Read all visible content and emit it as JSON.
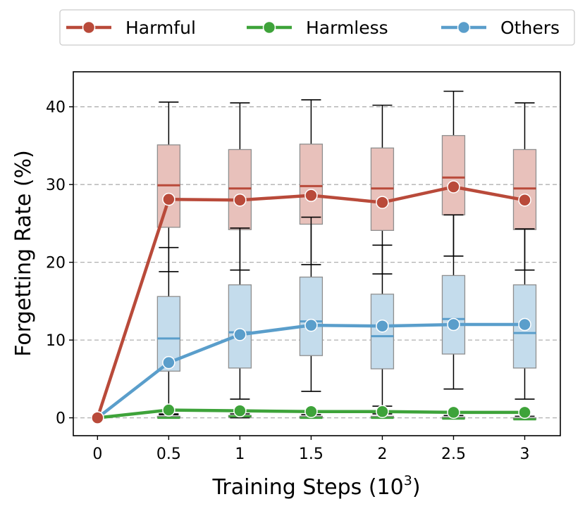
{
  "chart_data": {
    "type": "line",
    "xlabel_main": "Training Steps (10",
    "xlabel_sup": "3",
    "xlabel_close": ")",
    "ylabel": "Forgetting Rate (%)",
    "x": [
      0,
      0.5,
      1,
      1.5,
      2,
      2.5,
      3
    ],
    "xtick_labels": [
      "0",
      "0.5",
      "1",
      "1.5",
      "2",
      "2.5",
      "3"
    ],
    "yticks": [
      0,
      10,
      20,
      30,
      40
    ],
    "ytick_labels": [
      "0",
      "10",
      "20",
      "30",
      "40"
    ],
    "xlim": [
      -0.17,
      3.25
    ],
    "ylim": [
      -2.3,
      44.5
    ],
    "grid": "horizontal dashed",
    "legend_position": "top, above plot",
    "series": [
      {
        "name": "Harmful",
        "color": "#b94a3a",
        "box_fill": "#e8c1bb",
        "values": [
          0,
          28.1,
          28.0,
          28.6,
          27.7,
          29.7,
          28.0
        ],
        "boxes": [
          null,
          {
            "q1": 24.5,
            "median": 29.9,
            "q3": 35.1,
            "whislo": 18.8,
            "whishi": 40.6
          },
          {
            "q1": 24.2,
            "median": 29.5,
            "q3": 34.5,
            "whislo": 19.0,
            "whishi": 40.5
          },
          {
            "q1": 24.9,
            "median": 29.8,
            "q3": 35.2,
            "whislo": 19.7,
            "whishi": 40.9
          },
          {
            "q1": 24.1,
            "median": 29.5,
            "q3": 34.7,
            "whislo": 18.5,
            "whishi": 40.2
          },
          {
            "q1": 26.1,
            "median": 30.9,
            "q3": 36.3,
            "whislo": 20.8,
            "whishi": 42.0
          },
          {
            "q1": 24.2,
            "median": 29.5,
            "q3": 34.5,
            "whislo": 19.0,
            "whishi": 40.5
          }
        ]
      },
      {
        "name": "Harmless",
        "color": "#3ea33a",
        "box_fill": "#c2e3bf",
        "values": [
          0,
          1.0,
          0.9,
          0.8,
          0.8,
          0.7,
          0.7
        ],
        "boxes": [
          null,
          {
            "q1": 0.0,
            "median": 0.0,
            "q3": 0.2,
            "whislo": 0.0,
            "whishi": 0.4
          },
          {
            "q1": 0.1,
            "median": 0.2,
            "q3": 0.3,
            "whislo": 0.0,
            "whishi": 0.5
          },
          {
            "q1": 0.0,
            "median": 0.0,
            "q3": 0.2,
            "whislo": 0.0,
            "whishi": 0.4
          },
          {
            "q1": 0.0,
            "median": 0.0,
            "q3": 0.2,
            "whislo": 0.0,
            "whishi": 1.5
          },
          {
            "q1": -0.1,
            "median": -0.1,
            "q3": 0.1,
            "whislo": -0.1,
            "whishi": 0.3
          },
          {
            "q1": -0.2,
            "median": -0.2,
            "q3": 0.0,
            "whislo": -0.2,
            "whishi": 0.2
          }
        ]
      },
      {
        "name": "Others",
        "color": "#5a9ecb",
        "box_fill": "#c4dcec",
        "values": [
          0,
          7.1,
          10.7,
          11.9,
          11.8,
          12.0,
          12.0
        ],
        "boxes": [
          null,
          {
            "q1": 6.0,
            "median": 10.2,
            "q3": 15.6,
            "whislo": 0.5,
            "whishi": 21.9
          },
          {
            "q1": 6.4,
            "median": 11.0,
            "q3": 17.1,
            "whislo": 2.4,
            "whishi": 24.4
          },
          {
            "q1": 8.0,
            "median": 12.4,
            "q3": 18.1,
            "whislo": 3.4,
            "whishi": 25.8
          },
          {
            "q1": 6.3,
            "median": 10.5,
            "q3": 15.9,
            "whislo": 0.5,
            "whishi": 22.2
          },
          {
            "q1": 8.2,
            "median": 12.7,
            "q3": 18.3,
            "whislo": 3.7,
            "whishi": 26.1
          },
          {
            "q1": 6.4,
            "median": 10.9,
            "q3": 17.1,
            "whislo": 2.4,
            "whishi": 24.3
          }
        ]
      }
    ]
  }
}
